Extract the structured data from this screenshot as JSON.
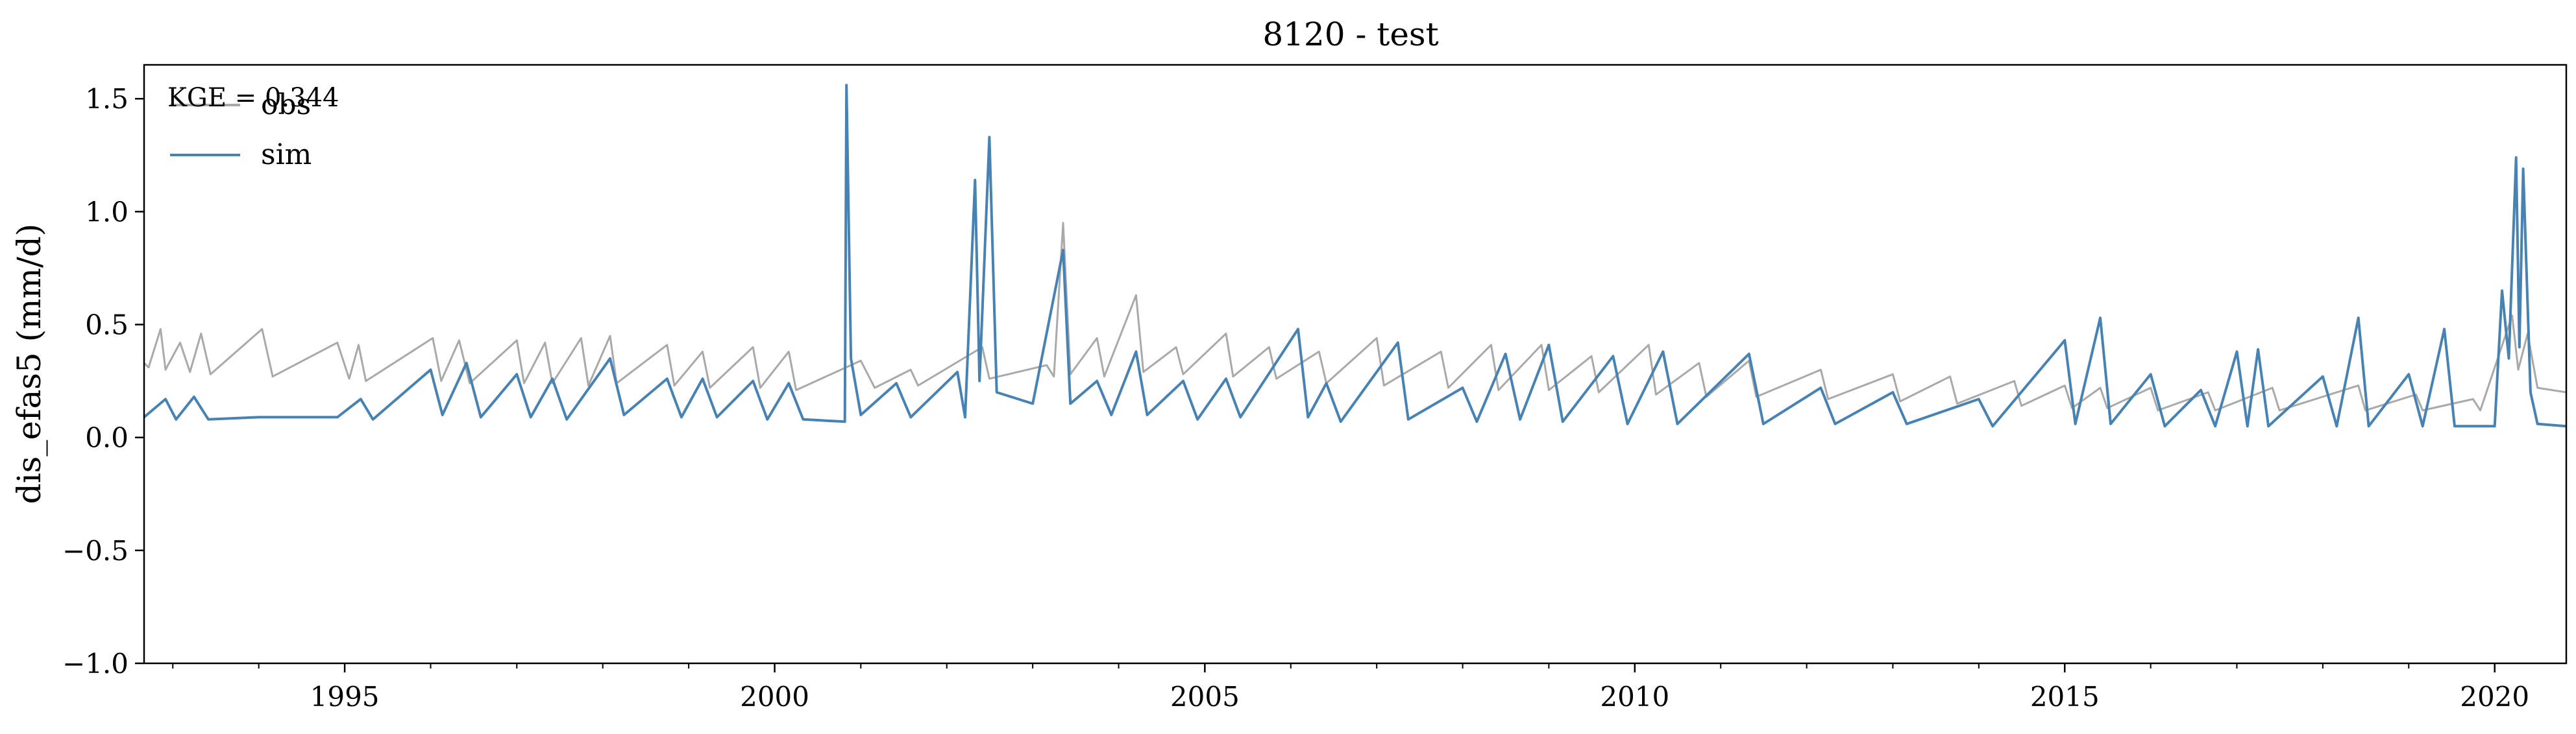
{
  "chart_data": {
    "type": "line",
    "title": "8120 - test",
    "xlabel": "",
    "ylabel": "dis_efas5 (mm/d)",
    "annotation": "KGE = 0.344",
    "xlim": [
      "1992-09-01",
      "2020-10-31"
    ],
    "ylim": [
      -1.0,
      1.65
    ],
    "x_ticks": [
      {
        "date": "1995-01-01",
        "label": "1995"
      },
      {
        "date": "2000-01-01",
        "label": "2000"
      },
      {
        "date": "2005-01-01",
        "label": "2005"
      },
      {
        "date": "2010-01-01",
        "label": "2010"
      },
      {
        "date": "2015-01-01",
        "label": "2015"
      },
      {
        "date": "2020-01-01",
        "label": "2020"
      }
    ],
    "y_ticks": [
      {
        "value": 1.5,
        "label": "1.5"
      },
      {
        "value": 1.0,
        "label": "1.0"
      },
      {
        "value": 0.5,
        "label": "0.5"
      },
      {
        "value": 0.0,
        "label": "0.0"
      },
      {
        "value": -0.5,
        "label": "−0.5"
      },
      {
        "value": -1.0,
        "label": "−1.0"
      }
    ],
    "legend_position": "top-left",
    "grid": false,
    "series": [
      {
        "name": "obs",
        "color": "#a9a9a9",
        "points": [
          [
            "1992-09-01",
            0.33
          ],
          [
            "1992-09-20",
            0.31
          ],
          [
            "1992-11-10",
            0.48
          ],
          [
            "1992-12-01",
            0.3
          ],
          [
            "1993-02-01",
            0.42
          ],
          [
            "1993-03-15",
            0.29
          ],
          [
            "1993-05-01",
            0.46
          ],
          [
            "1993-06-10",
            0.28
          ],
          [
            "1994-01-15",
            0.48
          ],
          [
            "1994-03-01",
            0.27
          ],
          [
            "1994-12-01",
            0.42
          ],
          [
            "1995-01-20",
            0.26
          ],
          [
            "1995-03-01",
            0.41
          ],
          [
            "1995-04-01",
            0.25
          ],
          [
            "1996-01-10",
            0.44
          ],
          [
            "1996-02-15",
            0.25
          ],
          [
            "1996-05-01",
            0.43
          ],
          [
            "1996-06-15",
            0.24
          ],
          [
            "1997-01-01",
            0.43
          ],
          [
            "1997-02-01",
            0.24
          ],
          [
            "1997-05-01",
            0.42
          ],
          [
            "1997-06-01",
            0.24
          ],
          [
            "1997-10-01",
            0.44
          ],
          [
            "1997-11-01",
            0.23
          ],
          [
            "1998-02-01",
            0.45
          ],
          [
            "1998-03-01",
            0.24
          ],
          [
            "1998-10-01",
            0.41
          ],
          [
            "1998-11-01",
            0.23
          ],
          [
            "1999-03-01",
            0.38
          ],
          [
            "1999-04-01",
            0.22
          ],
          [
            "1999-10-01",
            0.4
          ],
          [
            "1999-11-01",
            0.22
          ],
          [
            "2000-03-01",
            0.38
          ],
          [
            "2000-04-01",
            0.21
          ],
          [
            "2001-01-01",
            0.34
          ],
          [
            "2001-03-01",
            0.22
          ],
          [
            "2001-08-01",
            0.3
          ],
          [
            "2001-09-01",
            0.23
          ],
          [
            "2002-06-01",
            0.4
          ],
          [
            "2002-07-01",
            0.26
          ],
          [
            "2003-03-01",
            0.32
          ],
          [
            "2003-04-01",
            0.27
          ],
          [
            "2003-05-10",
            0.95
          ],
          [
            "2003-06-10",
            0.28
          ],
          [
            "2003-10-01",
            0.44
          ],
          [
            "2003-11-01",
            0.27
          ],
          [
            "2004-03-15",
            0.63
          ],
          [
            "2004-04-15",
            0.29
          ],
          [
            "2004-09-01",
            0.4
          ],
          [
            "2004-10-01",
            0.28
          ],
          [
            "2005-04-01",
            0.46
          ],
          [
            "2005-05-01",
            0.27
          ],
          [
            "2005-10-01",
            0.4
          ],
          [
            "2005-11-01",
            0.26
          ],
          [
            "2006-05-01",
            0.38
          ],
          [
            "2006-06-01",
            0.24
          ],
          [
            "2007-01-01",
            0.44
          ],
          [
            "2007-02-01",
            0.23
          ],
          [
            "2007-10-01",
            0.38
          ],
          [
            "2007-11-01",
            0.22
          ],
          [
            "2008-05-01",
            0.41
          ],
          [
            "2008-06-01",
            0.21
          ],
          [
            "2008-12-01",
            0.41
          ],
          [
            "2009-01-01",
            0.21
          ],
          [
            "2009-07-01",
            0.36
          ],
          [
            "2009-08-01",
            0.2
          ],
          [
            "2010-03-01",
            0.41
          ],
          [
            "2010-04-01",
            0.19
          ],
          [
            "2010-10-01",
            0.33
          ],
          [
            "2010-11-01",
            0.18
          ],
          [
            "2011-05-01",
            0.34
          ],
          [
            "2011-06-01",
            0.18
          ],
          [
            "2012-03-01",
            0.3
          ],
          [
            "2012-04-01",
            0.17
          ],
          [
            "2013-01-01",
            0.28
          ],
          [
            "2013-02-01",
            0.16
          ],
          [
            "2013-09-01",
            0.27
          ],
          [
            "2013-10-01",
            0.15
          ],
          [
            "2014-06-01",
            0.25
          ],
          [
            "2014-07-01",
            0.14
          ],
          [
            "2015-01-01",
            0.23
          ],
          [
            "2015-02-01",
            0.13
          ],
          [
            "2015-06-01",
            0.22
          ],
          [
            "2015-07-01",
            0.13
          ],
          [
            "2016-01-01",
            0.22
          ],
          [
            "2016-02-01",
            0.12
          ],
          [
            "2016-09-01",
            0.2
          ],
          [
            "2016-10-01",
            0.12
          ],
          [
            "2017-06-01",
            0.22
          ],
          [
            "2017-07-01",
            0.12
          ],
          [
            "2018-06-01",
            0.23
          ],
          [
            "2018-07-01",
            0.12
          ],
          [
            "2019-02-01",
            0.19
          ],
          [
            "2019-03-01",
            0.12
          ],
          [
            "2019-10-01",
            0.17
          ],
          [
            "2019-11-01",
            0.12
          ],
          [
            "2020-03-15",
            0.54
          ],
          [
            "2020-04-10",
            0.3
          ],
          [
            "2020-05-20",
            0.46
          ],
          [
            "2020-07-01",
            0.22
          ],
          [
            "2020-10-31",
            0.2
          ]
        ]
      },
      {
        "name": "sim",
        "color": "#4682b4",
        "points": [
          [
            "1992-09-01",
            0.09
          ],
          [
            "1992-12-01",
            0.17
          ],
          [
            "1993-01-15",
            0.08
          ],
          [
            "1993-04-01",
            0.18
          ],
          [
            "1993-06-01",
            0.08
          ],
          [
            "1994-01-01",
            0.09
          ],
          [
            "1994-12-01",
            0.09
          ],
          [
            "1995-03-10",
            0.17
          ],
          [
            "1995-05-01",
            0.08
          ],
          [
            "1996-01-01",
            0.3
          ],
          [
            "1996-02-20",
            0.1
          ],
          [
            "1996-06-01",
            0.33
          ],
          [
            "1996-08-01",
            0.09
          ],
          [
            "1997-01-01",
            0.28
          ],
          [
            "1997-03-01",
            0.09
          ],
          [
            "1997-06-01",
            0.26
          ],
          [
            "1997-08-01",
            0.08
          ],
          [
            "1998-02-01",
            0.35
          ],
          [
            "1998-04-01",
            0.1
          ],
          [
            "1998-10-01",
            0.26
          ],
          [
            "1998-12-01",
            0.09
          ],
          [
            "1999-03-01",
            0.26
          ],
          [
            "1999-05-01",
            0.09
          ],
          [
            "1999-10-01",
            0.25
          ],
          [
            "1999-12-01",
            0.08
          ],
          [
            "2000-03-01",
            0.24
          ],
          [
            "2000-05-01",
            0.08
          ],
          [
            "2000-10-25",
            0.07
          ],
          [
            "2000-11-01",
            1.56
          ],
          [
            "2000-11-20",
            0.35
          ],
          [
            "2001-01-01",
            0.1
          ],
          [
            "2001-06-01",
            0.24
          ],
          [
            "2001-08-01",
            0.09
          ],
          [
            "2002-02-15",
            0.29
          ],
          [
            "2002-03-20",
            0.09
          ],
          [
            "2002-05-01",
            1.14
          ],
          [
            "2002-05-20",
            0.25
          ],
          [
            "2002-07-01",
            1.33
          ],
          [
            "2002-08-01",
            0.2
          ],
          [
            "2003-01-01",
            0.15
          ],
          [
            "2003-05-10",
            0.83
          ],
          [
            "2003-06-10",
            0.15
          ],
          [
            "2003-10-01",
            0.25
          ],
          [
            "2003-12-01",
            0.1
          ],
          [
            "2004-03-15",
            0.38
          ],
          [
            "2004-05-01",
            0.1
          ],
          [
            "2004-10-01",
            0.25
          ],
          [
            "2004-12-01",
            0.08
          ],
          [
            "2005-04-01",
            0.26
          ],
          [
            "2005-06-01",
            0.09
          ],
          [
            "2006-02-01",
            0.48
          ],
          [
            "2006-03-15",
            0.09
          ],
          [
            "2006-06-01",
            0.24
          ],
          [
            "2006-08-01",
            0.07
          ],
          [
            "2007-04-01",
            0.42
          ],
          [
            "2007-05-15",
            0.08
          ],
          [
            "2008-01-01",
            0.22
          ],
          [
            "2008-03-01",
            0.07
          ],
          [
            "2008-07-01",
            0.37
          ],
          [
            "2008-09-01",
            0.08
          ],
          [
            "2009-01-01",
            0.41
          ],
          [
            "2009-03-01",
            0.07
          ],
          [
            "2009-10-01",
            0.36
          ],
          [
            "2009-12-01",
            0.06
          ],
          [
            "2010-05-01",
            0.38
          ],
          [
            "2010-07-01",
            0.06
          ],
          [
            "2011-05-01",
            0.37
          ],
          [
            "2011-07-01",
            0.06
          ],
          [
            "2012-03-01",
            0.22
          ],
          [
            "2012-05-01",
            0.06
          ],
          [
            "2013-01-01",
            0.2
          ],
          [
            "2013-03-01",
            0.06
          ],
          [
            "2014-01-01",
            0.17
          ],
          [
            "2014-03-01",
            0.05
          ],
          [
            "2015-01-01",
            0.43
          ],
          [
            "2015-02-15",
            0.06
          ],
          [
            "2015-06-01",
            0.53
          ],
          [
            "2015-07-15",
            0.06
          ],
          [
            "2016-01-01",
            0.28
          ],
          [
            "2016-03-01",
            0.05
          ],
          [
            "2016-08-01",
            0.21
          ],
          [
            "2016-10-01",
            0.05
          ],
          [
            "2017-01-01",
            0.38
          ],
          [
            "2017-02-15",
            0.05
          ],
          [
            "2017-04-01",
            0.39
          ],
          [
            "2017-05-15",
            0.05
          ],
          [
            "2018-01-01",
            0.27
          ],
          [
            "2018-03-01",
            0.05
          ],
          [
            "2018-06-01",
            0.53
          ],
          [
            "2018-07-15",
            0.05
          ],
          [
            "2019-01-01",
            0.28
          ],
          [
            "2019-03-01",
            0.05
          ],
          [
            "2019-06-01",
            0.48
          ],
          [
            "2019-07-15",
            0.05
          ],
          [
            "2020-01-01",
            0.05
          ],
          [
            "2020-02-01",
            0.65
          ],
          [
            "2020-03-01",
            0.35
          ],
          [
            "2020-04-01",
            1.24
          ],
          [
            "2020-04-15",
            0.4
          ],
          [
            "2020-05-01",
            1.19
          ],
          [
            "2020-06-01",
            0.2
          ],
          [
            "2020-07-01",
            0.06
          ],
          [
            "2020-10-31",
            0.05
          ]
        ]
      }
    ]
  }
}
